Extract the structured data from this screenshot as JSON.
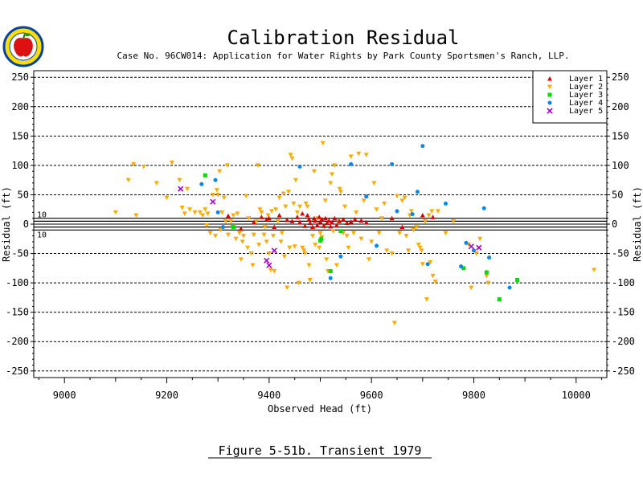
{
  "page": {
    "title": "Calibration Residual",
    "subtitle": "Case No. 96CW014: Application for Water Rights by Park County Sportsmen's Ranch, LLP.",
    "caption": "Figure 5-51b.  Transient 1979",
    "logo": "apple-seal-icon"
  },
  "chart_data": {
    "type": "scatter",
    "title": "Calibration Residual",
    "xlabel": "Observed Head (ft)",
    "ylabel": "Residual (ft)",
    "ylabel_right": "Residual (ft)",
    "xlim": [
      8940,
      10060
    ],
    "ylim": [
      -250,
      250
    ],
    "x_ticks": [
      9000,
      9200,
      9400,
      9600,
      9800,
      10000
    ],
    "y_ticks": [
      -250,
      -200,
      -150,
      -100,
      -50,
      0,
      50,
      100,
      150,
      200,
      250
    ],
    "grid": "horizontal-dashed",
    "legend_position": "top-right",
    "reference_lines": [
      {
        "y": 10,
        "label": "10"
      },
      {
        "y": 5,
        "label": ""
      },
      {
        "y": -5,
        "label": ""
      },
      {
        "y": -10,
        "label": "10"
      }
    ],
    "series": [
      {
        "name": "Layer 1",
        "color": "#dd0000",
        "marker": "triangle-up",
        "points": [
          [
            9320,
            14
          ],
          [
            9345,
            -8
          ],
          [
            9370,
            3
          ],
          [
            9385,
            12
          ],
          [
            9395,
            8
          ],
          [
            9400,
            10
          ],
          [
            9410,
            -5
          ],
          [
            9420,
            15
          ],
          [
            9435,
            7
          ],
          [
            9445,
            5
          ],
          [
            9455,
            12
          ],
          [
            9460,
            3
          ],
          [
            9465,
            18
          ],
          [
            9470,
            -3
          ],
          [
            9475,
            15
          ],
          [
            9478,
            8
          ],
          [
            9480,
            2
          ],
          [
            9485,
            -5
          ],
          [
            9488,
            10
          ],
          [
            9490,
            6
          ],
          [
            9494,
            -2
          ],
          [
            9498,
            12
          ],
          [
            9500,
            4
          ],
          [
            9503,
            8
          ],
          [
            9507,
            -3
          ],
          [
            9510,
            10
          ],
          [
            9513,
            2
          ],
          [
            9517,
            6
          ],
          [
            9520,
            -4
          ],
          [
            9523,
            3
          ],
          [
            9528,
            10
          ],
          [
            9532,
            -2
          ],
          [
            9537,
            5
          ],
          [
            9545,
            8
          ],
          [
            9552,
            2
          ],
          [
            9560,
            4
          ],
          [
            9568,
            8
          ],
          [
            9580,
            6
          ],
          [
            9590,
            3
          ],
          [
            9640,
            10
          ],
          [
            9660,
            -5
          ],
          [
            9700,
            15
          ],
          [
            9720,
            12
          ]
        ]
      },
      {
        "name": "Layer 2",
        "color": "#ffaa00",
        "marker": "triangle-down",
        "points": [
          [
            9100,
            20
          ],
          [
            9125,
            75
          ],
          [
            9135,
            102
          ],
          [
            9140,
            15
          ],
          [
            9155,
            98
          ],
          [
            9180,
            70
          ],
          [
            9200,
            45
          ],
          [
            9210,
            105
          ],
          [
            9225,
            75
          ],
          [
            9230,
            28
          ],
          [
            9235,
            18
          ],
          [
            9240,
            60
          ],
          [
            9245,
            25
          ],
          [
            9255,
            20
          ],
          [
            9265,
            20
          ],
          [
            9270,
            15
          ],
          [
            9275,
            25
          ],
          [
            9278,
            -2
          ],
          [
            9280,
            18
          ],
          [
            9285,
            -15
          ],
          [
            9290,
            50
          ],
          [
            9295,
            -20
          ],
          [
            9298,
            58
          ],
          [
            9300,
            50
          ],
          [
            9303,
            90
          ],
          [
            9305,
            -10
          ],
          [
            9308,
            20
          ],
          [
            9312,
            45
          ],
          [
            9315,
            5
          ],
          [
            9318,
            100
          ],
          [
            9320,
            -18
          ],
          [
            9325,
            5
          ],
          [
            9328,
            -5
          ],
          [
            9330,
            15
          ],
          [
            9335,
            -25
          ],
          [
            9338,
            18
          ],
          [
            9342,
            -15
          ],
          [
            9345,
            -60
          ],
          [
            9348,
            -30
          ],
          [
            9350,
            -20
          ],
          [
            9355,
            48
          ],
          [
            9358,
            -40
          ],
          [
            9360,
            10
          ],
          [
            9365,
            -50
          ],
          [
            9368,
            -70
          ],
          [
            9370,
            -18
          ],
          [
            9375,
            5
          ],
          [
            9378,
            100
          ],
          [
            9380,
            -35
          ],
          [
            9382,
            25
          ],
          [
            9385,
            20
          ],
          [
            9390,
            -18
          ],
          [
            9392,
            -5
          ],
          [
            9395,
            -30
          ],
          [
            9398,
            15
          ],
          [
            9400,
            -50
          ],
          [
            9403,
            -78
          ],
          [
            9405,
            22
          ],
          [
            9408,
            -20
          ],
          [
            9410,
            -80
          ],
          [
            9413,
            25
          ],
          [
            9417,
            5
          ],
          [
            9420,
            45
          ],
          [
            9423,
            -30
          ],
          [
            9425,
            -15
          ],
          [
            9428,
            52
          ],
          [
            9430,
            -55
          ],
          [
            9432,
            30
          ],
          [
            9435,
            -108
          ],
          [
            9438,
            55
          ],
          [
            9440,
            -40
          ],
          [
            9442,
            118
          ],
          [
            9445,
            112
          ],
          [
            9448,
            35
          ],
          [
            9450,
            -38
          ],
          [
            9452,
            75
          ],
          [
            9455,
            20
          ],
          [
            9458,
            -100
          ],
          [
            9460,
            30
          ],
          [
            9465,
            -40
          ],
          [
            9468,
            -45
          ],
          [
            9470,
            -50
          ],
          [
            9472,
            35
          ],
          [
            9475,
            30
          ],
          [
            9478,
            -70
          ],
          [
            9480,
            -95
          ],
          [
            9485,
            -20
          ],
          [
            9488,
            90
          ],
          [
            9490,
            -35
          ],
          [
            9495,
            10
          ],
          [
            9498,
            -40
          ],
          [
            9500,
            -15
          ],
          [
            9503,
            -22
          ],
          [
            9505,
            138
          ],
          [
            9508,
            -5
          ],
          [
            9510,
            40
          ],
          [
            9512,
            -60
          ],
          [
            9515,
            -80
          ],
          [
            9520,
            70
          ],
          [
            9523,
            85
          ],
          [
            9525,
            -12
          ],
          [
            9528,
            100
          ],
          [
            9532,
            -70
          ],
          [
            9535,
            5
          ],
          [
            9538,
            60
          ],
          [
            9540,
            55
          ],
          [
            9545,
            -15
          ],
          [
            9548,
            30
          ],
          [
            9552,
            -20
          ],
          [
            9555,
            -40
          ],
          [
            9560,
            115
          ],
          [
            9565,
            -15
          ],
          [
            9570,
            20
          ],
          [
            9575,
            120
          ],
          [
            9580,
            -25
          ],
          [
            9585,
            40
          ],
          [
            9590,
            118
          ],
          [
            9595,
            -60
          ],
          [
            9600,
            -30
          ],
          [
            9605,
            70
          ],
          [
            9610,
            25
          ],
          [
            9615,
            -15
          ],
          [
            9620,
            10
          ],
          [
            9625,
            35
          ],
          [
            9630,
            -45
          ],
          [
            9640,
            -50
          ],
          [
            9645,
            -168
          ],
          [
            9650,
            48
          ],
          [
            9655,
            -15
          ],
          [
            9660,
            40
          ],
          [
            9665,
            45
          ],
          [
            9668,
            -20
          ],
          [
            9672,
            -45
          ],
          [
            9675,
            15
          ],
          [
            9678,
            22
          ],
          [
            9682,
            -10
          ],
          [
            9688,
            -5
          ],
          [
            9692,
            -35
          ],
          [
            9695,
            -40
          ],
          [
            9698,
            -45
          ],
          [
            9700,
            -68
          ],
          [
            9705,
            5
          ],
          [
            9708,
            -128
          ],
          [
            9712,
            15
          ],
          [
            9715,
            -65
          ],
          [
            9718,
            22
          ],
          [
            9720,
            -88
          ],
          [
            9725,
            -98
          ],
          [
            9730,
            22
          ],
          [
            9745,
            -15
          ],
          [
            9760,
            5
          ],
          [
            9790,
            -35
          ],
          [
            9795,
            -108
          ],
          [
            9805,
            -50
          ],
          [
            9812,
            -25
          ],
          [
            9825,
            -88
          ],
          [
            9828,
            -100
          ],
          [
            10035,
            -78
          ]
        ]
      },
      {
        "name": "Layer 3",
        "color": "#00dd00",
        "marker": "square",
        "points": [
          [
            9275,
            83
          ],
          [
            9330,
            -5
          ],
          [
            9500,
            -28
          ],
          [
            9502,
            -25
          ],
          [
            9520,
            -80
          ],
          [
            9540,
            -12
          ],
          [
            9780,
            -75
          ],
          [
            9825,
            -82
          ],
          [
            9850,
            -128
          ],
          [
            9885,
            -95
          ]
        ]
      },
      {
        "name": "Layer 4",
        "color": "#0088ee",
        "marker": "circle",
        "points": [
          [
            9268,
            68
          ],
          [
            9295,
            75
          ],
          [
            9300,
            20
          ],
          [
            9310,
            -5
          ],
          [
            9460,
            98
          ],
          [
            9520,
            -92
          ],
          [
            9540,
            -55
          ],
          [
            9560,
            102
          ],
          [
            9590,
            47
          ],
          [
            9610,
            -37
          ],
          [
            9640,
            102
          ],
          [
            9650,
            22
          ],
          [
            9680,
            17
          ],
          [
            9690,
            55
          ],
          [
            9700,
            133
          ],
          [
            9710,
            -68
          ],
          [
            9745,
            35
          ],
          [
            9775,
            -72
          ],
          [
            9785,
            -32
          ],
          [
            9800,
            -45
          ],
          [
            9820,
            27
          ],
          [
            9830,
            -57
          ],
          [
            9870,
            -108
          ]
        ]
      },
      {
        "name": "Layer 5",
        "color": "#aa00cc",
        "marker": "x",
        "points": [
          [
            9227,
            60
          ],
          [
            9290,
            38
          ],
          [
            9395,
            -62
          ],
          [
            9400,
            -70
          ],
          [
            9410,
            -45
          ],
          [
            9795,
            -38
          ],
          [
            9810,
            -40
          ]
        ]
      }
    ]
  }
}
